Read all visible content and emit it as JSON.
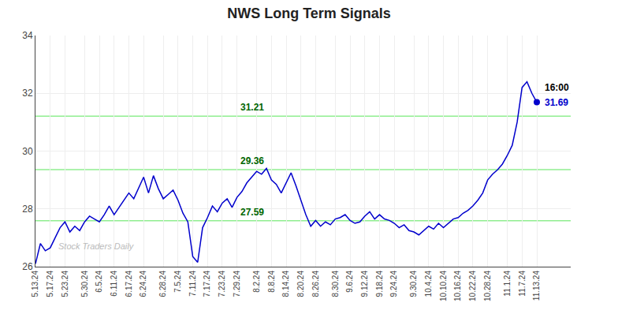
{
  "chart_data": {
    "type": "line",
    "title": "NWS Long Term Signals",
    "categories": [
      "5.13.24",
      null,
      null,
      "5.17.24",
      null,
      null,
      "5.23.24",
      null,
      null,
      null,
      "5.30.24",
      null,
      null,
      "6.5.24",
      null,
      null,
      "6.11.24",
      null,
      null,
      "6.17.24",
      null,
      null,
      "6.24.24",
      null,
      null,
      null,
      "6.28.24",
      null,
      null,
      "7.5.24",
      null,
      null,
      "7.11.24",
      null,
      null,
      "7.17.24",
      null,
      null,
      "7.23.24",
      null,
      null,
      "7.29.24",
      null,
      null,
      null,
      "8.2.24",
      null,
      null,
      "8.8.24",
      null,
      null,
      "8.14.24",
      null,
      null,
      "8.20.24",
      null,
      null,
      "8.26.24",
      null,
      null,
      null,
      "8.30.24",
      null,
      null,
      "9.6.24",
      null,
      null,
      "9.12.24",
      null,
      null,
      "9.18.24",
      null,
      null,
      "9.24.24",
      null,
      null,
      null,
      "9.30.24",
      null,
      null,
      "10.4.24",
      null,
      null,
      "10.10.24",
      null,
      null,
      "10.16.24",
      null,
      null,
      "10.22.24",
      null,
      null,
      "10.28.24",
      null,
      null,
      null,
      "11.1.24",
      null,
      null,
      "11.7.24",
      null,
      null,
      "11.13.24"
    ],
    "values": [
      26.1,
      26.8,
      26.55,
      26.65,
      27.0,
      27.35,
      27.55,
      27.2,
      27.4,
      27.25,
      27.55,
      27.75,
      27.65,
      27.55,
      27.8,
      28.1,
      27.8,
      28.05,
      28.3,
      28.55,
      28.35,
      28.75,
      29.1,
      28.55,
      29.15,
      28.7,
      28.35,
      28.5,
      28.65,
      28.3,
      27.85,
      27.55,
      26.35,
      26.15,
      27.35,
      27.7,
      28.1,
      27.9,
      28.2,
      28.35,
      28.05,
      28.4,
      28.6,
      28.9,
      29.1,
      29.3,
      29.2,
      29.4,
      29.0,
      28.85,
      28.55,
      28.9,
      29.25,
      28.8,
      28.3,
      27.8,
      27.4,
      27.6,
      27.4,
      27.55,
      27.45,
      27.65,
      27.7,
      27.8,
      27.6,
      27.5,
      27.55,
      27.75,
      27.9,
      27.65,
      27.8,
      27.65,
      27.6,
      27.5,
      27.35,
      27.45,
      27.25,
      27.2,
      27.1,
      27.25,
      27.4,
      27.3,
      27.5,
      27.35,
      27.5,
      27.65,
      27.7,
      27.85,
      27.95,
      28.1,
      28.3,
      28.55,
      29.0,
      29.2,
      29.35,
      29.55,
      29.85,
      30.2,
      31.0,
      32.2,
      32.4,
      32.0,
      31.69
    ],
    "color": "#0000cc",
    "ylim": [
      26,
      34
    ],
    "yticks": [
      26,
      28,
      30,
      32,
      34
    ],
    "grid": true,
    "hlines": [
      27.59,
      29.36,
      31.21
    ],
    "hline_color": "#90ee90",
    "hline_label_color": "#006600",
    "last_point_labels": [
      "16:00",
      "31.69"
    ],
    "watermark": "Stock Traders Daily"
  }
}
